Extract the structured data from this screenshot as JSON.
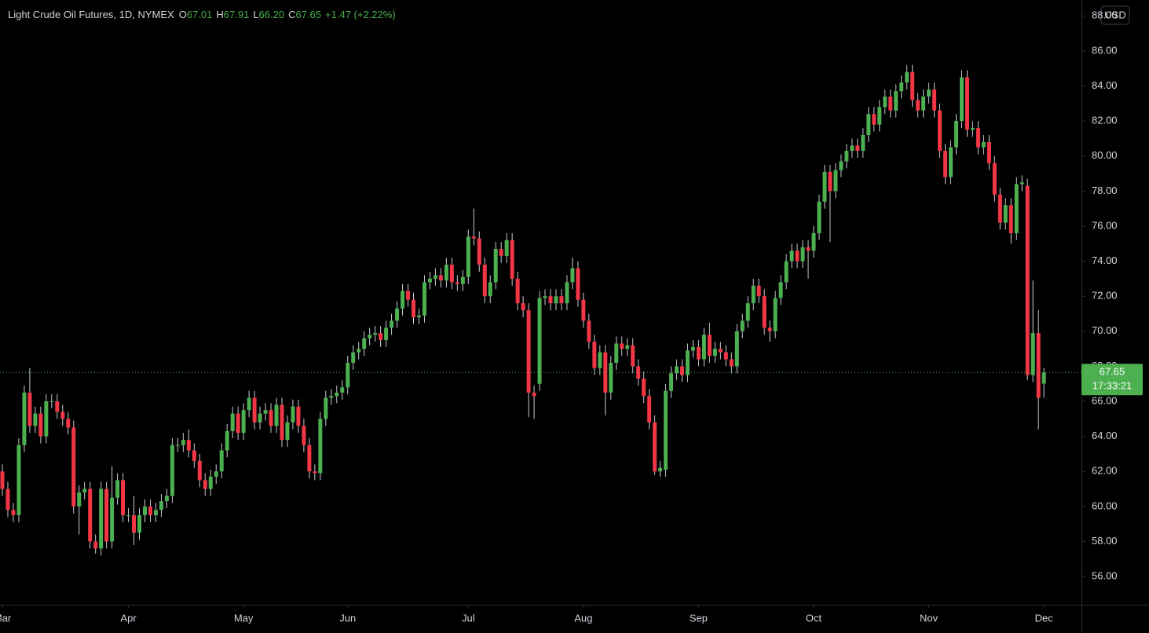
{
  "chart_data": {
    "type": "candlestick",
    "title": "Light Crude Oil Futures, 1D, NYMEX",
    "header_values": [
      {
        "label": "O",
        "value": "67.01"
      },
      {
        "label": "H",
        "value": "67.91"
      },
      {
        "label": "L",
        "value": "66.20"
      },
      {
        "label": "C",
        "value": "67.65"
      }
    ],
    "change": "+1.47 (+2.22%)",
    "currency": "USD",
    "last_price": {
      "value": 67.65,
      "label": "67.65",
      "countdown": "17:33:21"
    },
    "up_color": "#4caf50",
    "down_color": "#f23645",
    "xlim": [
      -0.43,
      196.85
    ],
    "ylim": [
      54.39,
      88.91
    ],
    "xticks": [
      {
        "value": 0,
        "label": "Mar"
      },
      {
        "value": 23,
        "label": "Apr"
      },
      {
        "value": 44,
        "label": "May"
      },
      {
        "value": 63,
        "label": "Jun"
      },
      {
        "value": 85,
        "label": "Jul"
      },
      {
        "value": 106,
        "label": "Aug"
      },
      {
        "value": 127,
        "label": "Sep"
      },
      {
        "value": 148,
        "label": "Oct"
      },
      {
        "value": 169,
        "label": "Nov"
      },
      {
        "value": 190,
        "label": "Dec"
      }
    ],
    "yticks": [
      {
        "value": 56,
        "label": "56.00"
      },
      {
        "value": 58,
        "label": "58.00"
      },
      {
        "value": 60,
        "label": "60.00"
      },
      {
        "value": 62,
        "label": "62.00"
      },
      {
        "value": 64,
        "label": "64.00"
      },
      {
        "value": 66,
        "label": "66.00"
      },
      {
        "value": 68,
        "label": "68.00"
      },
      {
        "value": 70,
        "label": "70.00"
      },
      {
        "value": 72,
        "label": "72.00"
      },
      {
        "value": 74,
        "label": "74.00"
      },
      {
        "value": 76,
        "label": "76.00"
      },
      {
        "value": 78,
        "label": "78.00"
      },
      {
        "value": 80,
        "label": "80.00"
      },
      {
        "value": 82,
        "label": "82.00"
      },
      {
        "value": 84,
        "label": "84.00"
      },
      {
        "value": 86,
        "label": "86.00"
      },
      {
        "value": 88,
        "label": "88.00"
      }
    ],
    "grid": false,
    "open": [
      62.0,
      61.0,
      59.8,
      59.5,
      63.5,
      66.5,
      64.6,
      65.3,
      64.0,
      66.0,
      66.0,
      65.4,
      65.0,
      64.5,
      60.0,
      60.8,
      61.0,
      58.0,
      57.6,
      61.0,
      58.0,
      60.5,
      61.5,
      59.5,
      59.5,
      58.5,
      59.5,
      60.0,
      59.5,
      59.8,
      60.3,
      60.6,
      63.5,
      63.5,
      63.8,
      63.2,
      62.6,
      61.5,
      61.0,
      61.7,
      62.0,
      63.2,
      64.3,
      65.3,
      64.2,
      65.5,
      66.2,
      64.8,
      65.3,
      65.5,
      64.6,
      65.8,
      63.8,
      64.8,
      65.7,
      64.6,
      63.5,
      62.0,
      61.9,
      65.0,
      66.2,
      66.3,
      66.5,
      66.8,
      68.2,
      68.8,
      69.0,
      69.6,
      69.8,
      69.9,
      69.5,
      70.2,
      70.6,
      71.3,
      72.3,
      71.8,
      70.8,
      70.9,
      72.8,
      73.0,
      73.2,
      72.9,
      73.8,
      72.8,
      72.7,
      73.1,
      75.4,
      75.3,
      73.8,
      72.0,
      72.8,
      74.7,
      74.3,
      75.2,
      73.0,
      71.6,
      71.2,
      66.5,
      67.0,
      71.9,
      72.0,
      71.6,
      72.0,
      71.6,
      72.8,
      73.6,
      71.8,
      70.6,
      69.4,
      67.9,
      68.8,
      66.5,
      68.2,
      69.3,
      69.0,
      69.2,
      68.0,
      67.3,
      66.3,
      64.8,
      62.0,
      62.1,
      66.6,
      67.6,
      68.0,
      67.5,
      68.9,
      69.1,
      68.4,
      69.8,
      68.6,
      69.0,
      68.8,
      68.4,
      68.0,
      70.0,
      70.6,
      71.6,
      72.6,
      72.0,
      70.2,
      70.0,
      71.9,
      72.8,
      74.0,
      74.6,
      74.0,
      74.8,
      74.6,
      75.6,
      77.4,
      79.1,
      78.0,
      79.2,
      79.7,
      80.3,
      80.6,
      80.3,
      81.2,
      82.4,
      81.8,
      82.8,
      83.4,
      82.6,
      83.7,
      84.2,
      84.8,
      83.2,
      82.6,
      83.4,
      83.8,
      82.6,
      80.3,
      78.8,
      80.5,
      82.0,
      84.5,
      81.5,
      81.6,
      80.5,
      80.8,
      79.6,
      77.8,
      76.2,
      77.2,
      75.6,
      78.4,
      78.3,
      67.5,
      69.9,
      67.01
    ],
    "high": [
      62.4,
      61.4,
      60.2,
      63.9,
      66.9,
      67.9,
      65.7,
      65.7,
      66.4,
      66.4,
      66.4,
      65.8,
      65.4,
      64.9,
      61.2,
      61.4,
      61.4,
      58.4,
      61.4,
      61.4,
      62.3,
      61.9,
      61.9,
      59.9,
      60.6,
      59.9,
      60.4,
      60.4,
      60.2,
      60.7,
      61.0,
      63.9,
      63.9,
      64.2,
      64.4,
      63.6,
      63.0,
      61.9,
      62.1,
      62.4,
      63.6,
      64.7,
      65.7,
      65.7,
      65.9,
      66.6,
      66.6,
      65.7,
      65.9,
      65.9,
      66.2,
      66.2,
      65.2,
      66.1,
      66.1,
      65.0,
      63.9,
      62.4,
      65.4,
      66.6,
      66.7,
      66.9,
      67.2,
      68.6,
      69.2,
      69.4,
      70.0,
      70.2,
      70.3,
      70.3,
      70.6,
      71.0,
      71.7,
      72.7,
      72.7,
      72.2,
      71.3,
      73.2,
      73.4,
      73.6,
      73.6,
      74.2,
      74.2,
      73.2,
      73.5,
      75.8,
      77.0,
      75.7,
      74.2,
      73.2,
      75.1,
      75.1,
      75.6,
      75.6,
      73.4,
      72.0,
      71.6,
      66.9,
      72.3,
      72.4,
      72.4,
      72.4,
      72.4,
      73.2,
      74.2,
      74.0,
      72.2,
      71.0,
      69.8,
      69.2,
      69.2,
      68.6,
      69.7,
      69.7,
      69.6,
      69.6,
      68.4,
      67.7,
      66.7,
      65.2,
      62.6,
      67.0,
      68.0,
      68.4,
      68.4,
      69.3,
      69.5,
      69.5,
      70.2,
      70.5,
      69.4,
      69.4,
      69.2,
      68.8,
      70.4,
      71.0,
      72.0,
      73.0,
      73.0,
      72.4,
      70.6,
      72.3,
      73.2,
      74.4,
      75.0,
      75.0,
      75.2,
      75.2,
      76.0,
      77.8,
      79.5,
      79.5,
      79.6,
      80.1,
      80.7,
      81.0,
      81.0,
      81.6,
      82.8,
      82.8,
      83.2,
      83.8,
      83.8,
      84.1,
      84.6,
      85.2,
      85.2,
      83.6,
      83.8,
      84.2,
      84.2,
      83.0,
      80.7,
      80.9,
      82.4,
      84.9,
      84.9,
      82.0,
      82.0,
      81.2,
      81.2,
      80.0,
      78.2,
      77.6,
      77.6,
      78.8,
      78.9,
      78.7,
      72.9,
      71.2,
      67.91
    ],
    "low": [
      60.6,
      59.4,
      59.1,
      59.1,
      63.1,
      64.2,
      64.2,
      63.6,
      63.6,
      65.6,
      65.0,
      64.6,
      64.1,
      59.6,
      58.4,
      60.4,
      57.6,
      57.3,
      57.2,
      57.6,
      57.6,
      60.1,
      59.1,
      59.1,
      57.8,
      58.1,
      59.1,
      59.1,
      59.1,
      59.4,
      59.9,
      60.2,
      63.1,
      63.1,
      62.8,
      62.2,
      61.1,
      60.6,
      60.6,
      61.3,
      61.6,
      62.8,
      63.9,
      63.8,
      63.8,
      65.1,
      64.4,
      64.4,
      64.9,
      64.2,
      64.2,
      63.4,
      63.4,
      64.4,
      64.2,
      63.1,
      61.6,
      61.5,
      61.5,
      64.6,
      65.8,
      65.9,
      66.1,
      66.4,
      67.8,
      68.4,
      68.6,
      69.2,
      69.4,
      69.1,
      69.1,
      69.8,
      70.2,
      70.9,
      71.4,
      70.4,
      70.4,
      70.5,
      72.4,
      72.6,
      72.5,
      72.5,
      72.4,
      72.3,
      72.3,
      72.7,
      74.9,
      73.4,
      71.6,
      71.6,
      72.4,
      73.9,
      73.9,
      72.6,
      71.2,
      70.8,
      65.1,
      65.0,
      66.6,
      71.5,
      71.2,
      71.2,
      71.2,
      71.2,
      72.4,
      71.4,
      70.2,
      69.0,
      67.5,
      67.5,
      65.2,
      66.1,
      67.8,
      68.6,
      68.6,
      67.6,
      66.9,
      65.9,
      64.4,
      61.8,
      61.7,
      61.7,
      66.2,
      67.2,
      67.1,
      67.1,
      68.5,
      68.0,
      68.0,
      68.2,
      68.2,
      68.4,
      68.0,
      67.6,
      67.6,
      69.6,
      70.2,
      71.2,
      71.6,
      69.8,
      69.4,
      69.6,
      71.5,
      72.4,
      73.6,
      73.6,
      73.6,
      73.0,
      74.2,
      75.2,
      77.0,
      75.1,
      77.6,
      78.8,
      79.3,
      79.9,
      79.9,
      79.9,
      80.8,
      81.4,
      81.4,
      82.4,
      82.2,
      82.2,
      83.3,
      83.8,
      82.8,
      82.2,
      82.2,
      83.0,
      82.2,
      79.9,
      78.4,
      78.4,
      80.1,
      81.6,
      81.1,
      81.1,
      80.1,
      80.1,
      79.2,
      77.4,
      75.8,
      75.8,
      75.0,
      75.2,
      78.0,
      67.2,
      67.1,
      64.4,
      66.2
    ],
    "close": [
      61.0,
      59.8,
      59.5,
      63.5,
      66.5,
      64.6,
      65.3,
      64.0,
      66.0,
      66.0,
      65.4,
      65.0,
      64.5,
      60.0,
      60.8,
      61.0,
      58.0,
      57.6,
      61.0,
      58.0,
      60.5,
      61.5,
      59.5,
      59.5,
      58.5,
      59.5,
      60.0,
      59.5,
      59.8,
      60.3,
      60.6,
      63.5,
      63.5,
      63.8,
      63.2,
      62.6,
      61.5,
      61.0,
      61.7,
      62.0,
      63.2,
      64.3,
      65.3,
      64.2,
      65.5,
      66.2,
      64.8,
      65.3,
      65.5,
      64.6,
      65.8,
      63.8,
      64.8,
      65.7,
      64.6,
      63.5,
      62.0,
      61.9,
      65.0,
      66.2,
      66.3,
      66.5,
      66.8,
      68.2,
      68.8,
      69.0,
      69.6,
      69.8,
      69.9,
      69.5,
      70.2,
      70.6,
      71.3,
      72.3,
      71.8,
      70.8,
      70.9,
      72.8,
      73.0,
      73.2,
      72.9,
      73.8,
      72.8,
      72.7,
      73.1,
      75.4,
      75.3,
      73.8,
      72.0,
      72.8,
      74.7,
      74.3,
      75.2,
      73.0,
      71.6,
      71.2,
      66.5,
      66.3,
      71.9,
      72.0,
      71.6,
      72.0,
      71.6,
      72.8,
      73.6,
      71.8,
      70.6,
      69.4,
      67.9,
      68.8,
      66.5,
      68.2,
      69.3,
      69.0,
      69.2,
      68.0,
      67.3,
      66.3,
      64.8,
      62.0,
      62.2,
      66.6,
      67.6,
      68.0,
      67.5,
      68.9,
      69.1,
      68.4,
      69.8,
      68.6,
      69.0,
      68.8,
      68.4,
      68.0,
      70.0,
      70.6,
      71.6,
      72.6,
      72.0,
      70.2,
      70.0,
      71.9,
      72.8,
      74.0,
      74.6,
      74.0,
      74.8,
      74.6,
      75.6,
      77.4,
      79.1,
      78.0,
      79.2,
      79.7,
      80.3,
      80.6,
      80.3,
      81.2,
      82.4,
      81.8,
      82.8,
      83.4,
      82.6,
      83.7,
      84.2,
      84.8,
      83.2,
      82.6,
      83.4,
      83.8,
      82.6,
      80.3,
      78.8,
      80.5,
      82.0,
      84.5,
      81.5,
      81.6,
      80.5,
      80.8,
      79.6,
      77.8,
      76.2,
      77.2,
      75.6,
      78.4,
      78.5,
      67.5,
      69.9,
      66.2,
      67.65
    ]
  }
}
